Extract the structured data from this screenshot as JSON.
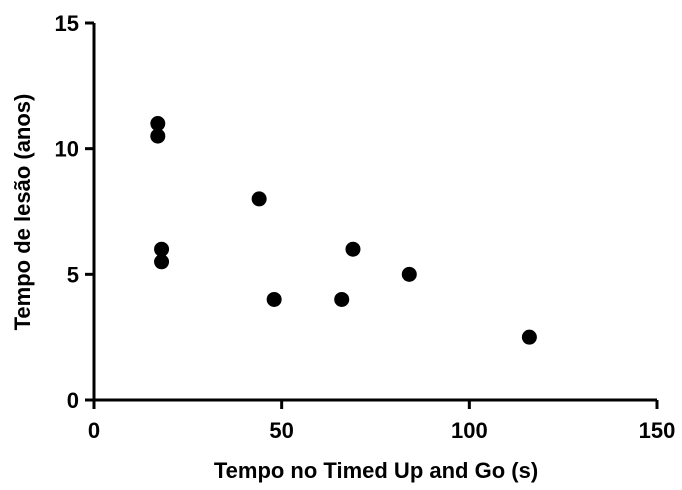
{
  "chart_data": {
    "type": "scatter",
    "title": "",
    "xlabel": "Tempo no Timed Up and Go (s)",
    "ylabel": "Tempo de lesão (anos)",
    "xlim": [
      0,
      150
    ],
    "ylim": [
      0,
      15
    ],
    "xticks": [
      0,
      50,
      100,
      150
    ],
    "yticks": [
      0,
      5,
      10,
      15
    ],
    "grid": false,
    "legend": "none",
    "marker_color": "#000000",
    "points": [
      {
        "x": 17,
        "y": 11
      },
      {
        "x": 17,
        "y": 10.5
      },
      {
        "x": 18,
        "y": 6
      },
      {
        "x": 18,
        "y": 5.5
      },
      {
        "x": 44,
        "y": 8
      },
      {
        "x": 48,
        "y": 4
      },
      {
        "x": 66,
        "y": 4
      },
      {
        "x": 69,
        "y": 6
      },
      {
        "x": 84,
        "y": 5
      },
      {
        "x": 116,
        "y": 2.5
      }
    ]
  }
}
